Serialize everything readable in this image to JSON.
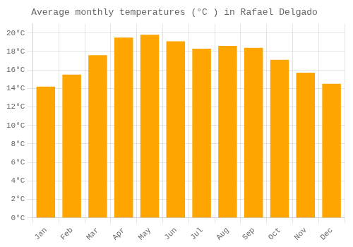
{
  "chart_data": {
    "type": "bar",
    "title": "Average monthly temperatures (°C ) in Rafael Delgado",
    "categories": [
      "Jan",
      "Feb",
      "Mar",
      "Apr",
      "May",
      "Jun",
      "Jul",
      "Aug",
      "Sep",
      "Oct",
      "Nov",
      "Dec"
    ],
    "values": [
      14.2,
      15.5,
      17.6,
      19.5,
      19.8,
      19.1,
      18.3,
      18.6,
      18.4,
      17.1,
      15.7,
      14.5
    ],
    "color": "#FFA500",
    "ylim": [
      0,
      21
    ],
    "yticks": [
      {
        "value": 0,
        "label": "0°C"
      },
      {
        "value": 2,
        "label": "2°C"
      },
      {
        "value": 4,
        "label": "4°C"
      },
      {
        "value": 6,
        "label": "6°C"
      },
      {
        "value": 8,
        "label": "8°C"
      },
      {
        "value": 10,
        "label": "10°C"
      },
      {
        "value": 12,
        "label": "12°C"
      },
      {
        "value": 14,
        "label": "14°C"
      },
      {
        "value": 16,
        "label": "16°C"
      },
      {
        "value": 18,
        "label": "18°C"
      },
      {
        "value": 20,
        "label": "20°C"
      }
    ],
    "grid": true
  }
}
